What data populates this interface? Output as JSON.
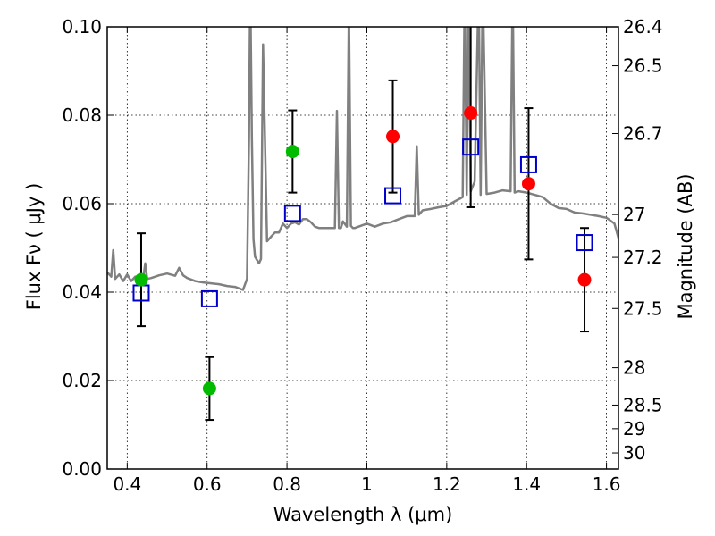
{
  "chart_data": {
    "type": "scatter",
    "xlabel": "Wavelength λ (μm)",
    "ylabel": "Flux Fν ( μJy )",
    "y2label": "Magnitude (AB)",
    "xlim": [
      0.35,
      1.63
    ],
    "ylim": [
      0.0,
      0.1
    ],
    "x_ticks": [
      0.4,
      0.6,
      0.8,
      1.0,
      1.2,
      1.4,
      1.6
    ],
    "x_tick_labels": [
      "0.4",
      "0.6",
      "0.8",
      "1",
      "1.2",
      "1.4",
      "1.6"
    ],
    "y_ticks": [
      0.0,
      0.02,
      0.04,
      0.06,
      0.08,
      0.1
    ],
    "y_tick_labels": [
      "0.00",
      "0.02",
      "0.04",
      "0.06",
      "0.08",
      "0.10"
    ],
    "y2_ticks": [
      {
        "label": "26.4",
        "mag": 26.4
      },
      {
        "label": "26.5",
        "mag": 26.5
      },
      {
        "label": "26.7",
        "mag": 26.7
      },
      {
        "label": "27",
        "mag": 27.0
      },
      {
        "label": "27.2",
        "mag": 27.2
      },
      {
        "label": "27.5",
        "mag": 27.5
      },
      {
        "label": "28",
        "mag": 28.0
      },
      {
        "label": "28.5",
        "mag": 28.5
      },
      {
        "label": "29",
        "mag": 29.0
      },
      {
        "label": "30",
        "mag": 30.0
      }
    ],
    "grid": true,
    "series": [
      {
        "marker": "circle",
        "color": "#00bb00",
        "points": [
          {
            "x": 0.435,
            "y": 0.0428,
            "err": 0.0105
          },
          {
            "x": 0.606,
            "y": 0.0182,
            "err": 0.0071
          },
          {
            "x": 0.814,
            "y": 0.0718,
            "err": 0.0093
          }
        ]
      },
      {
        "marker": "circle",
        "color": "#ff0000",
        "points": [
          {
            "x": 1.065,
            "y": 0.0752,
            "err": 0.0127
          },
          {
            "x": 1.26,
            "y": 0.0805,
            "err": 0.0213
          },
          {
            "x": 1.405,
            "y": 0.0645,
            "err": 0.0171
          },
          {
            "x": 1.545,
            "y": 0.0428,
            "err": 0.0117
          }
        ]
      },
      {
        "marker": "open-square",
        "color": "#0000cc",
        "points": [
          {
            "x": 0.435,
            "y": 0.0398
          },
          {
            "x": 0.606,
            "y": 0.0385
          },
          {
            "x": 0.814,
            "y": 0.0578
          },
          {
            "x": 1.065,
            "y": 0.0618
          },
          {
            "x": 1.26,
            "y": 0.0728
          },
          {
            "x": 1.405,
            "y": 0.0688
          },
          {
            "x": 1.545,
            "y": 0.0512
          }
        ]
      },
      {
        "type": "line",
        "color": "#808080",
        "x": [
          0.35,
          0.36,
          0.365,
          0.37,
          0.38,
          0.39,
          0.4,
          0.41,
          0.42,
          0.43,
          0.44,
          0.445,
          0.45,
          0.46,
          0.48,
          0.5,
          0.52,
          0.53,
          0.54,
          0.55,
          0.57,
          0.59,
          0.61,
          0.63,
          0.65,
          0.67,
          0.69,
          0.7,
          0.705,
          0.708,
          0.712,
          0.716,
          0.72,
          0.73,
          0.735,
          0.74,
          0.75,
          0.76,
          0.77,
          0.78,
          0.79,
          0.8,
          0.81,
          0.82,
          0.83,
          0.84,
          0.85,
          0.86,
          0.87,
          0.88,
          0.9,
          0.92,
          0.925,
          0.93,
          0.935,
          0.94,
          0.95,
          0.955,
          0.96,
          0.965,
          0.97,
          1.0,
          1.02,
          1.04,
          1.06,
          1.08,
          1.1,
          1.12,
          1.125,
          1.13,
          1.14,
          1.16,
          1.18,
          1.2,
          1.22,
          1.24,
          1.245,
          1.25,
          1.255,
          1.26,
          1.27,
          1.28,
          1.285,
          1.29,
          1.3,
          1.32,
          1.34,
          1.36,
          1.365,
          1.37,
          1.38,
          1.4,
          1.42,
          1.44,
          1.46,
          1.48,
          1.5,
          1.52,
          1.54,
          1.56,
          1.58,
          1.6,
          1.62,
          1.63
        ],
        "y": [
          0.0445,
          0.0435,
          0.0495,
          0.043,
          0.044,
          0.0425,
          0.044,
          0.0425,
          0.0435,
          0.0425,
          0.043,
          0.0465,
          0.043,
          0.0432,
          0.0438,
          0.0442,
          0.0437,
          0.0455,
          0.0438,
          0.0432,
          0.0425,
          0.0422,
          0.042,
          0.0418,
          0.0414,
          0.0412,
          0.0405,
          0.043,
          0.075,
          0.11,
          0.075,
          0.052,
          0.048,
          0.0465,
          0.0475,
          0.096,
          0.0515,
          0.0525,
          0.0535,
          0.0535,
          0.0555,
          0.0545,
          0.0555,
          0.0558,
          0.0553,
          0.0565,
          0.0565,
          0.0558,
          0.0548,
          0.0545,
          0.0545,
          0.0545,
          0.081,
          0.0545,
          0.0545,
          0.056,
          0.0548,
          0.105,
          0.055,
          0.0545,
          0.0545,
          0.0555,
          0.0548,
          0.0555,
          0.0558,
          0.0565,
          0.0572,
          0.0572,
          0.073,
          0.0575,
          0.0585,
          0.0588,
          0.0592,
          0.0595,
          0.0605,
          0.0615,
          0.11,
          0.062,
          0.11,
          0.0628,
          0.065,
          0.11,
          0.062,
          0.11,
          0.0622,
          0.0625,
          0.063,
          0.0628,
          0.11,
          0.0625,
          0.0628,
          0.0625,
          0.062,
          0.0615,
          0.06,
          0.059,
          0.0588,
          0.058,
          0.0578,
          0.0575,
          0.0572,
          0.0568,
          0.0555,
          0.0522
        ]
      }
    ]
  }
}
